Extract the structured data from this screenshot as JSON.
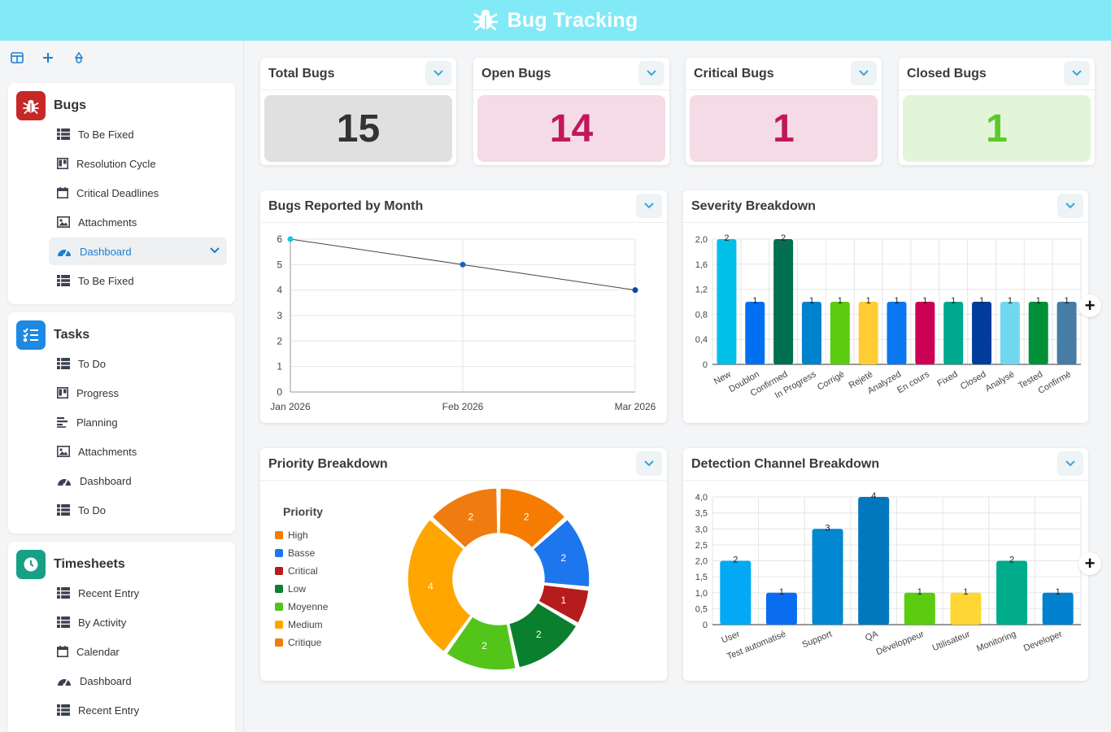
{
  "app": {
    "title": "Bug Tracking"
  },
  "sidebar": {
    "groups": [
      {
        "title": "Bugs",
        "color": "#c62828",
        "items": [
          {
            "label": "To Be Fixed",
            "icon": "table-icon"
          },
          {
            "label": "Resolution Cycle",
            "icon": "kanban-icon"
          },
          {
            "label": "Critical Deadlines",
            "icon": "calendar-icon"
          },
          {
            "label": "Attachments",
            "icon": "image-icon"
          },
          {
            "label": "Dashboard",
            "icon": "dashboard-icon",
            "active": true
          },
          {
            "label": "To Be Fixed",
            "icon": "table-icon"
          }
        ]
      },
      {
        "title": "Tasks",
        "color": "#1e88e5",
        "items": [
          {
            "label": "To Do",
            "icon": "table-icon"
          },
          {
            "label": "Progress",
            "icon": "kanban-icon"
          },
          {
            "label": "Planning",
            "icon": "gantt-icon"
          },
          {
            "label": "Attachments",
            "icon": "image-icon"
          },
          {
            "label": "Dashboard",
            "icon": "dashboard-icon"
          },
          {
            "label": "To Do",
            "icon": "table-icon"
          }
        ]
      },
      {
        "title": "Timesheets",
        "color": "#16a085",
        "items": [
          {
            "label": "Recent Entry",
            "icon": "table-icon"
          },
          {
            "label": "By Activity",
            "icon": "table-icon"
          },
          {
            "label": "Calendar",
            "icon": "calendar-icon"
          },
          {
            "label": "Dashboard",
            "icon": "dashboard-icon"
          },
          {
            "label": "Recent Entry",
            "icon": "table-icon"
          }
        ]
      }
    ]
  },
  "kpis": [
    {
      "title": "Total Bugs",
      "value": "15",
      "bg": "#e0e0e0",
      "fg": "#333333"
    },
    {
      "title": "Open Bugs",
      "value": "14",
      "bg": "#f5dbe5",
      "fg": "#c2185b"
    },
    {
      "title": "Critical Bugs",
      "value": "1",
      "bg": "#f5dbe5",
      "fg": "#c2185b"
    },
    {
      "title": "Closed Bugs",
      "value": "1",
      "bg": "#e3f5d9",
      "fg": "#5bc92a"
    }
  ],
  "cards": {
    "month": {
      "title": "Bugs Reported by Month"
    },
    "severity": {
      "title": "Severity Breakdown"
    },
    "priority": {
      "title": "Priority Breakdown"
    },
    "channel": {
      "title": "Detection Channel Breakdown"
    }
  },
  "chart_data": [
    {
      "type": "line",
      "title": "Bugs Reported by Month",
      "x": [
        "Jan 2026",
        "Feb 2026",
        "Mar 2026"
      ],
      "y": [
        6,
        5,
        4
      ],
      "yticks": [
        "0",
        "1",
        "2",
        "3",
        "4",
        "5",
        "6"
      ],
      "ylim": [
        0,
        6
      ],
      "grid": true
    },
    {
      "type": "bar",
      "title": "Severity Breakdown",
      "categories": [
        "New",
        "Doublon",
        "Confirmed",
        "In Progress",
        "Corrigé",
        "Rejeté",
        "Analyzed",
        "En cours",
        "Fixed",
        "Closed",
        "Analysé",
        "Tested",
        "Confirmé"
      ],
      "values": [
        2,
        1,
        2,
        1,
        1,
        1,
        1,
        1,
        1,
        1,
        1,
        1,
        1
      ],
      "colors": [
        "#00c0e8",
        "#0070f0",
        "#007050",
        "#0082cc",
        "#5ccc10",
        "#ffcc33",
        "#0a78ee",
        "#cc0055",
        "#00a890",
        "#003c99",
        "#70d8ee",
        "#00903a",
        "#467ca6"
      ],
      "yticks": [
        "0",
        "0,4",
        "0,8",
        "1,2",
        "1,6",
        "2,0"
      ],
      "ylim": [
        0,
        2
      ],
      "grid": true
    },
    {
      "type": "pie",
      "title": "Priority Breakdown",
      "legend_title": "Priority",
      "series": [
        {
          "name": "High",
          "value": 2,
          "color": "#f57c00"
        },
        {
          "name": "Basse",
          "value": 2,
          "color": "#1e76ee"
        },
        {
          "name": "Critical",
          "value": 1,
          "color": "#b71c1c"
        },
        {
          "name": "Low",
          "value": 2,
          "color": "#0a7f2e"
        },
        {
          "name": "Moyenne",
          "value": 2,
          "color": "#52c41a"
        },
        {
          "name": "Medium",
          "value": 4,
          "color": "#ffa500"
        },
        {
          "name": "Critique",
          "value": 2,
          "color": "#f07c10"
        }
      ],
      "legend_position": "left"
    },
    {
      "type": "bar",
      "title": "Detection Channel Breakdown",
      "categories": [
        "User",
        "Test automatisé",
        "Support",
        "QA",
        "Développeur",
        "Utilisateur",
        "Monitoring",
        "Developer"
      ],
      "values": [
        2,
        1,
        3,
        4,
        1,
        1,
        2,
        1
      ],
      "colors": [
        "#03a9f4",
        "#0a6cf0",
        "#0288d1",
        "#0277bd",
        "#5ccc10",
        "#ffd633",
        "#00ac8c",
        "#0280d0"
      ],
      "yticks": [
        "0",
        "0,5",
        "1,0",
        "1,5",
        "2,0",
        "2,5",
        "3,0",
        "3,5",
        "4,0"
      ],
      "ylim": [
        0,
        4
      ],
      "grid": true
    }
  ]
}
